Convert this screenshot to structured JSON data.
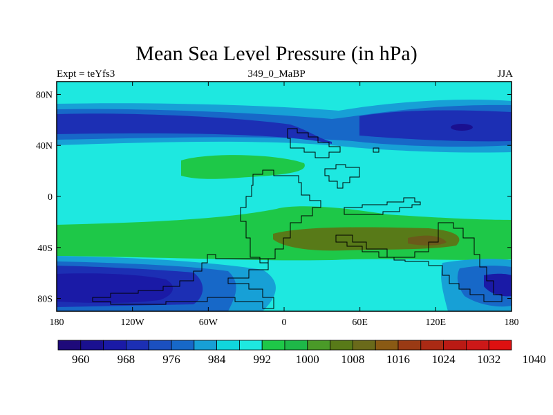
{
  "header": {
    "title": "Mean Sea Level Pressure (in hPa)",
    "left_label": "Expt = teYfs3",
    "center_label": "349_0_MaBP",
    "right_label": "JJA"
  },
  "axes": {
    "x_ticks": [
      {
        "value": -180,
        "label": "180"
      },
      {
        "value": -120,
        "label": "120W"
      },
      {
        "value": -60,
        "label": "60W"
      },
      {
        "value": 0,
        "label": "0"
      },
      {
        "value": 60,
        "label": "60E"
      },
      {
        "value": 120,
        "label": "120E"
      },
      {
        "value": 180,
        "label": "180"
      }
    ],
    "y_ticks": [
      {
        "value": 80,
        "label": "80N"
      },
      {
        "value": 40,
        "label": "40N"
      },
      {
        "value": 0,
        "label": "0"
      },
      {
        "value": -40,
        "label": "40S"
      },
      {
        "value": -80,
        "label": "80S"
      }
    ],
    "x_range": [
      -180,
      180
    ],
    "y_range": [
      -90,
      90
    ]
  },
  "colorbar": {
    "labels": [
      "960",
      "968",
      "976",
      "984",
      "992",
      "1000",
      "1008",
      "1016",
      "1024",
      "1032",
      "1040"
    ],
    "colors": [
      "#1e0a7a",
      "#1a1090",
      "#1a1aa6",
      "#1c2fb4",
      "#1b50c0",
      "#1768c8",
      "#17a0d6",
      "#10d6dc",
      "#1ee8e0",
      "#1ec848",
      "#1eb848",
      "#4a9a28",
      "#587a18",
      "#6a6a1a",
      "#8a5a14",
      "#9a3a14",
      "#aa2a14",
      "#ba1a14",
      "#cc1818",
      "#dd1010"
    ]
  },
  "palette": {
    "deep": "#1a1aa6",
    "blue": "#1c2fb4",
    "mid": "#1768c8",
    "light": "#17a0d6",
    "cyan": "#1ee8e0",
    "green": "#1ec848",
    "olive": "#587a18",
    "brown": "#6a5a1a"
  }
}
